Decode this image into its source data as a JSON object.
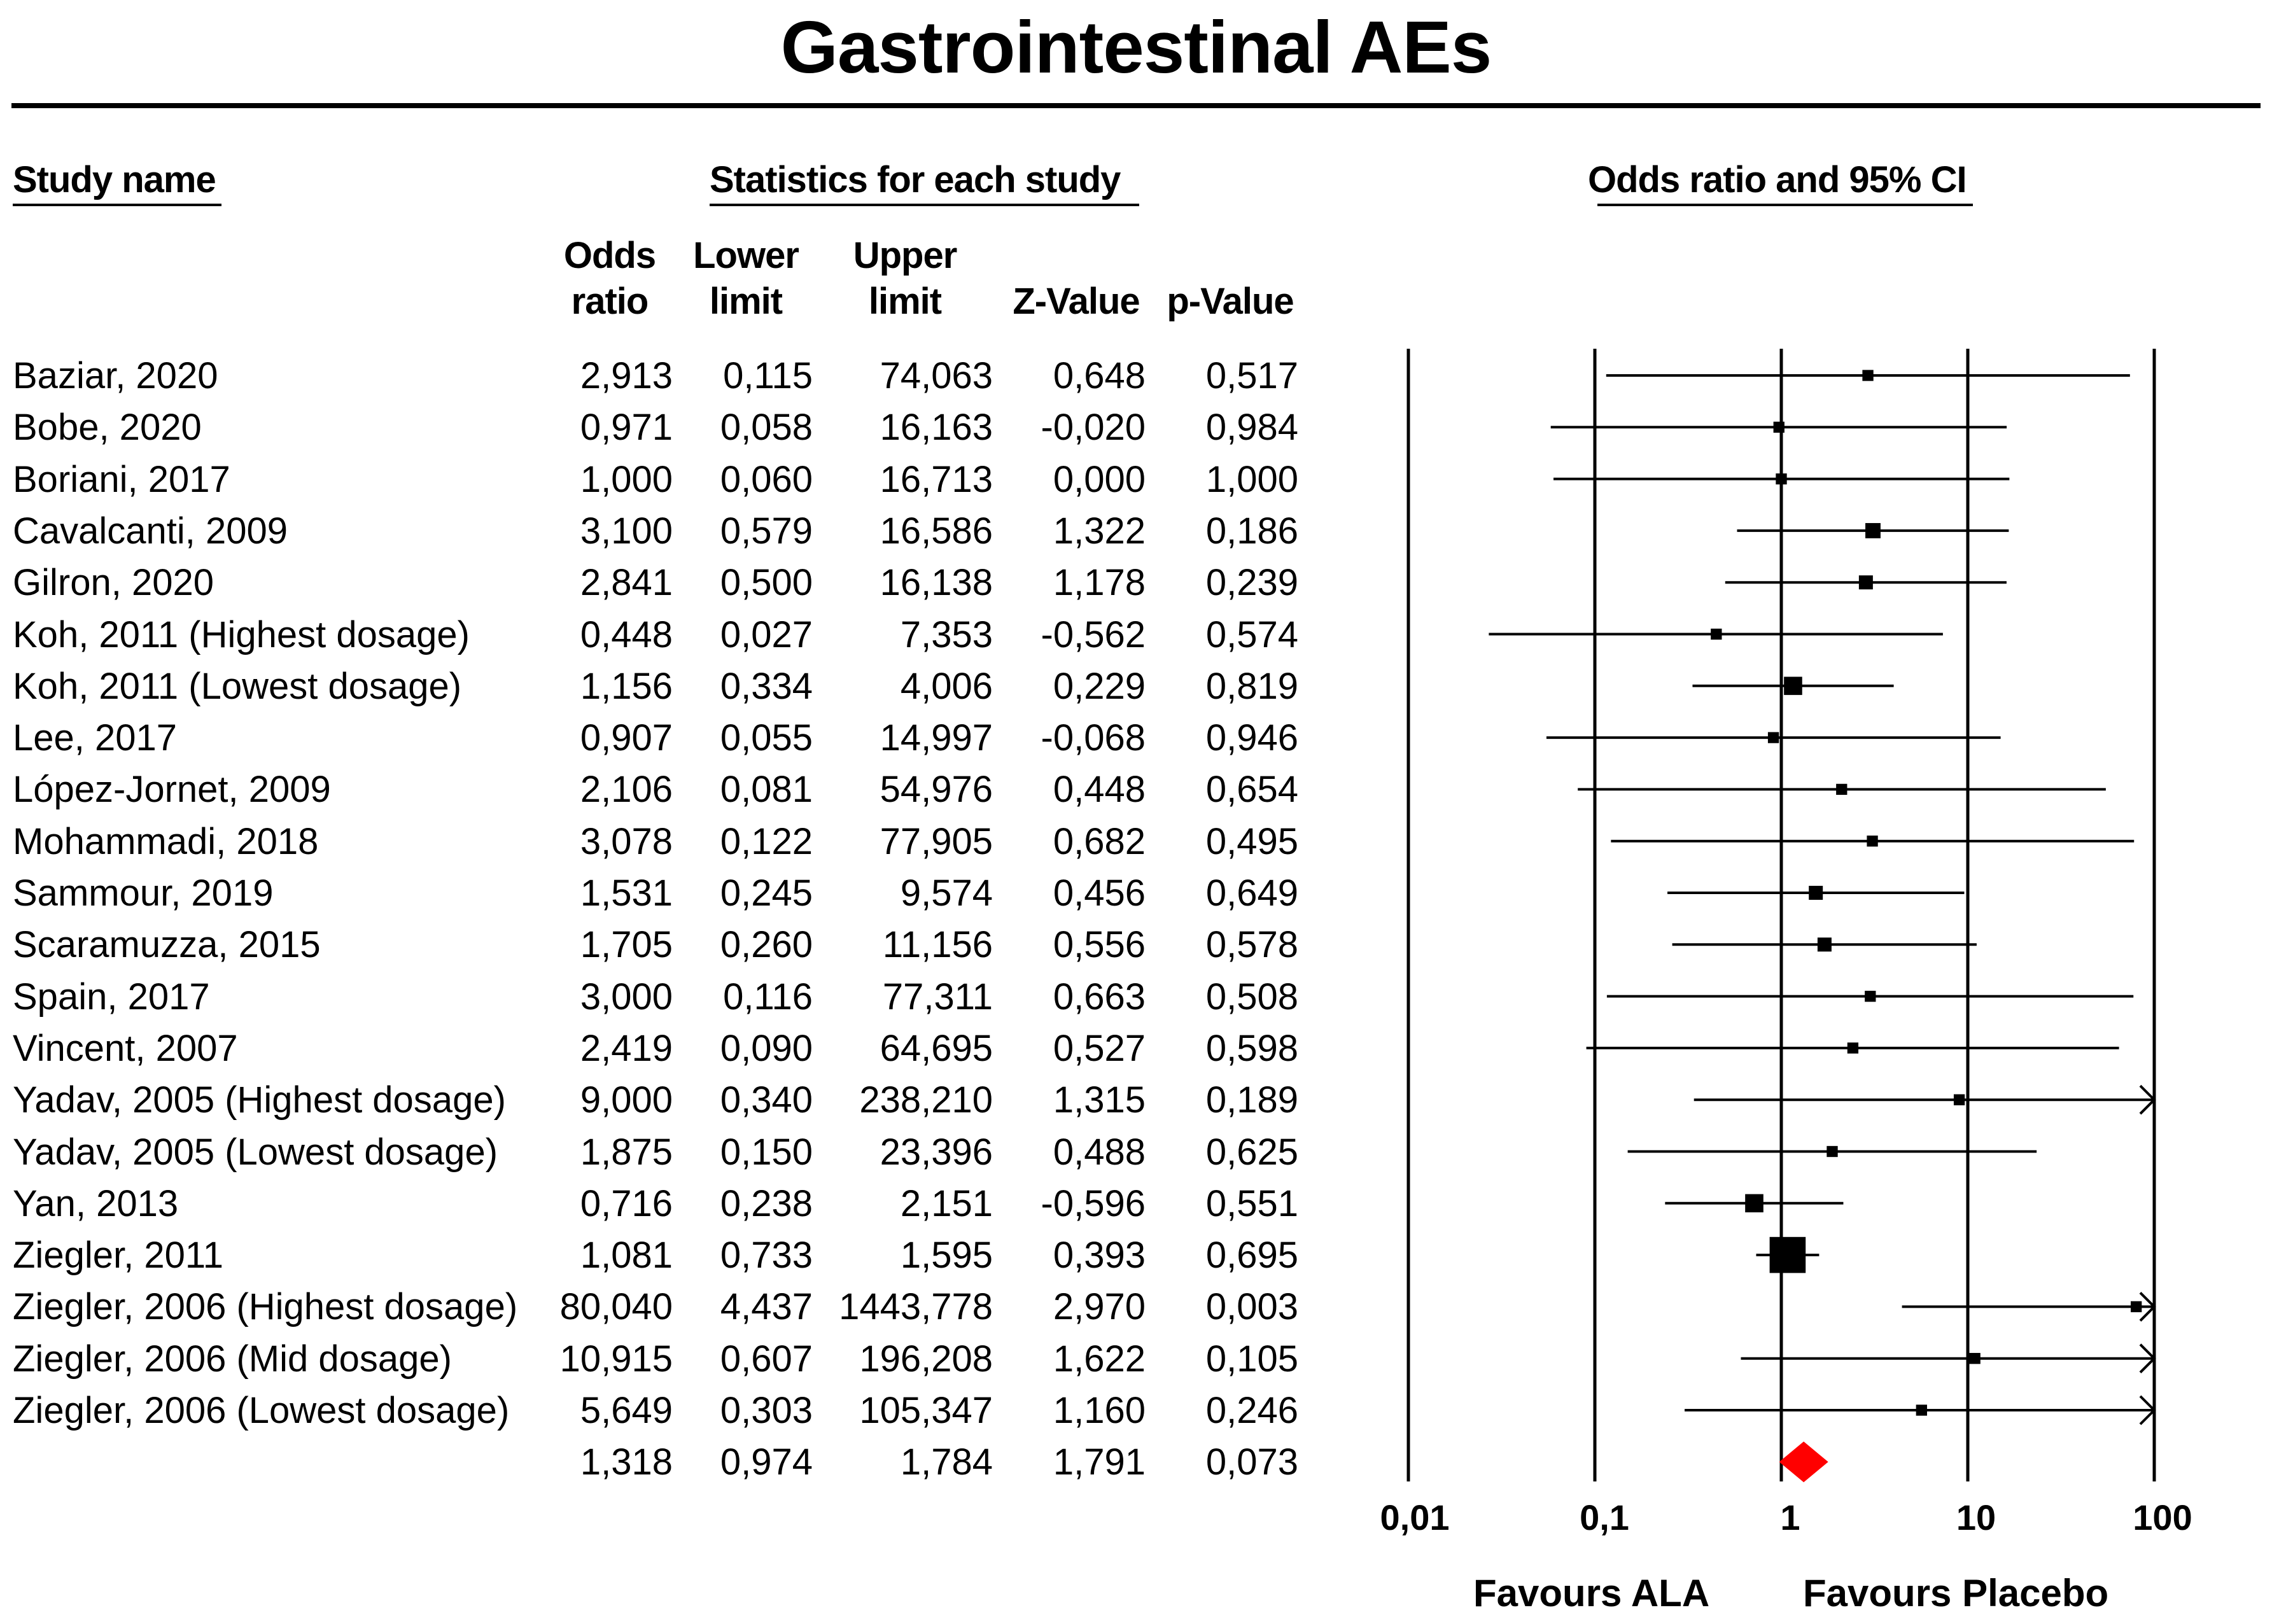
{
  "title": "Gastrointestinal AEs",
  "headers": {
    "study_name": "Study name",
    "statistics": "Statistics for each study",
    "or_ci": "Odds ratio and 95% CI"
  },
  "columns": {
    "or_line1": "Odds",
    "or_line2": "ratio",
    "lower_line1": "Lower",
    "lower_line2": "limit",
    "upper_line1": "Upper",
    "upper_line2": "limit",
    "z": "Z-Value",
    "p": "p-Value"
  },
  "rows": [
    {
      "study": "Baziar, 2020",
      "or": "2,913",
      "lower": "0,115",
      "upper": "74,063",
      "z": "0,648",
      "p": "0,517"
    },
    {
      "study": "Bobe, 2020",
      "or": "0,971",
      "lower": "0,058",
      "upper": "16,163",
      "z": "-0,020",
      "p": "0,984"
    },
    {
      "study": "Boriani, 2017",
      "or": "1,000",
      "lower": "0,060",
      "upper": "16,713",
      "z": "0,000",
      "p": "1,000"
    },
    {
      "study": "Cavalcanti, 2009",
      "or": "3,100",
      "lower": "0,579",
      "upper": "16,586",
      "z": "1,322",
      "p": "0,186"
    },
    {
      "study": "Gilron, 2020",
      "or": "2,841",
      "lower": "0,500",
      "upper": "16,138",
      "z": "1,178",
      "p": "0,239"
    },
    {
      "study": "Koh, 2011 (Highest dosage)",
      "or": "0,448",
      "lower": "0,027",
      "upper": "7,353",
      "z": "-0,562",
      "p": "0,574"
    },
    {
      "study": "Koh, 2011 (Lowest dosage)",
      "or": "1,156",
      "lower": "0,334",
      "upper": "4,006",
      "z": "0,229",
      "p": "0,819"
    },
    {
      "study": "Lee, 2017",
      "or": "0,907",
      "lower": "0,055",
      "upper": "14,997",
      "z": "-0,068",
      "p": "0,946"
    },
    {
      "study": "López-Jornet, 2009",
      "or": "2,106",
      "lower": "0,081",
      "upper": "54,976",
      "z": "0,448",
      "p": "0,654"
    },
    {
      "study": "Mohammadi, 2018",
      "or": "3,078",
      "lower": "0,122",
      "upper": "77,905",
      "z": "0,682",
      "p": "0,495"
    },
    {
      "study": "Sammour, 2019",
      "or": "1,531",
      "lower": "0,245",
      "upper": "9,574",
      "z": "0,456",
      "p": "0,649"
    },
    {
      "study": "Scaramuzza, 2015",
      "or": "1,705",
      "lower": "0,260",
      "upper": "11,156",
      "z": "0,556",
      "p": "0,578"
    },
    {
      "study": "Spain, 2017",
      "or": "3,000",
      "lower": "0,116",
      "upper": "77,311",
      "z": "0,663",
      "p": "0,508"
    },
    {
      "study": "Vincent, 2007",
      "or": "2,419",
      "lower": "0,090",
      "upper": "64,695",
      "z": "0,527",
      "p": "0,598"
    },
    {
      "study": "Yadav, 2005 (Highest dosage)",
      "or": "9,000",
      "lower": "0,340",
      "upper": "238,210",
      "z": "1,315",
      "p": "0,189"
    },
    {
      "study": "Yadav, 2005 (Lowest dosage)",
      "or": "1,875",
      "lower": "0,150",
      "upper": "23,396",
      "z": "0,488",
      "p": "0,625"
    },
    {
      "study": "Yan, 2013",
      "or": "0,716",
      "lower": "0,238",
      "upper": "2,151",
      "z": "-0,596",
      "p": "0,551"
    },
    {
      "study": "Ziegler, 2011",
      "or": "1,081",
      "lower": "0,733",
      "upper": "1,595",
      "z": "0,393",
      "p": "0,695"
    },
    {
      "study": "Ziegler, 2006 (Highest dosage)",
      "or": "80,040",
      "lower": "4,437",
      "upper": "1443,778",
      "z": "2,970",
      "p": "0,003"
    },
    {
      "study": "Ziegler, 2006 (Mid dosage)",
      "or": "10,915",
      "lower": "0,607",
      "upper": "196,208",
      "z": "1,622",
      "p": "0,105"
    },
    {
      "study": "Ziegler, 2006 (Lowest dosage)",
      "or": "5,649",
      "lower": "0,303",
      "upper": "105,347",
      "z": "1,160",
      "p": "0,246"
    },
    {
      "study": "",
      "or": "1,318",
      "lower": "0,974",
      "upper": "1,784",
      "z": "1,791",
      "p": "0,073"
    }
  ],
  "axis": {
    "ticks": [
      "0,01",
      "0,1",
      "1",
      "10",
      "100"
    ],
    "favours_left": "Favours ALA",
    "favours_right": "Favours Placebo"
  },
  "chart_data": {
    "type": "forest",
    "title": "Gastrointestinal AEs",
    "xscale": "log",
    "xlim": [
      0.01,
      100
    ],
    "reference_line": 1,
    "xlabel_left": "Favours ALA",
    "xlabel_right": "Favours Placebo",
    "studies": [
      {
        "name": "Baziar, 2020",
        "or": 2.913,
        "lower": 0.115,
        "upper": 74.063,
        "weight": 2
      },
      {
        "name": "Bobe, 2020",
        "or": 0.971,
        "lower": 0.058,
        "upper": 16.163,
        "weight": 2
      },
      {
        "name": "Boriani, 2017",
        "or": 1.0,
        "lower": 0.06,
        "upper": 16.713,
        "weight": 2
      },
      {
        "name": "Cavalcanti, 2009",
        "or": 3.1,
        "lower": 0.579,
        "upper": 16.586,
        "weight": 5
      },
      {
        "name": "Gilron, 2020",
        "or": 2.841,
        "lower": 0.5,
        "upper": 16.138,
        "weight": 4
      },
      {
        "name": "Koh, 2011 (Highest dosage)",
        "or": 0.448,
        "lower": 0.027,
        "upper": 7.353,
        "weight": 2
      },
      {
        "name": "Koh, 2011 (Lowest dosage)",
        "or": 1.156,
        "lower": 0.334,
        "upper": 4.006,
        "weight": 8
      },
      {
        "name": "Lee, 2017",
        "or": 0.907,
        "lower": 0.055,
        "upper": 14.997,
        "weight": 2
      },
      {
        "name": "López-Jornet, 2009",
        "or": 2.106,
        "lower": 0.081,
        "upper": 54.976,
        "weight": 2
      },
      {
        "name": "Mohammadi, 2018",
        "or": 3.078,
        "lower": 0.122,
        "upper": 77.905,
        "weight": 2
      },
      {
        "name": "Sammour, 2019",
        "or": 1.531,
        "lower": 0.245,
        "upper": 9.574,
        "weight": 4
      },
      {
        "name": "Scaramuzza, 2015",
        "or": 1.705,
        "lower": 0.26,
        "upper": 11.156,
        "weight": 4
      },
      {
        "name": "Spain, 2017",
        "or": 3.0,
        "lower": 0.116,
        "upper": 77.311,
        "weight": 2
      },
      {
        "name": "Vincent, 2007",
        "or": 2.419,
        "lower": 0.09,
        "upper": 64.695,
        "weight": 2
      },
      {
        "name": "Yadav, 2005 (Highest dosage)",
        "or": 9.0,
        "lower": 0.34,
        "upper": 238.21,
        "weight": 2
      },
      {
        "name": "Yadav, 2005 (Lowest dosage)",
        "or": 1.875,
        "lower": 0.15,
        "upper": 23.396,
        "weight": 2
      },
      {
        "name": "Yan, 2013",
        "or": 0.716,
        "lower": 0.238,
        "upper": 2.151,
        "weight": 8
      },
      {
        "name": "Ziegler, 2011",
        "or": 1.081,
        "lower": 0.733,
        "upper": 1.595,
        "weight": 40
      },
      {
        "name": "Ziegler, 2006 (Highest dosage)",
        "or": 80.04,
        "lower": 4.437,
        "upper": 1443.778,
        "weight": 2
      },
      {
        "name": "Ziegler, 2006 (Mid dosage)",
        "or": 10.915,
        "lower": 0.607,
        "upper": 196.208,
        "weight": 2
      },
      {
        "name": "Ziegler, 2006 (Lowest dosage)",
        "or": 5.649,
        "lower": 0.303,
        "upper": 105.347,
        "weight": 2
      }
    ],
    "summary": {
      "or": 1.318,
      "lower": 0.974,
      "upper": 1.784,
      "color": "#ff0000"
    }
  }
}
